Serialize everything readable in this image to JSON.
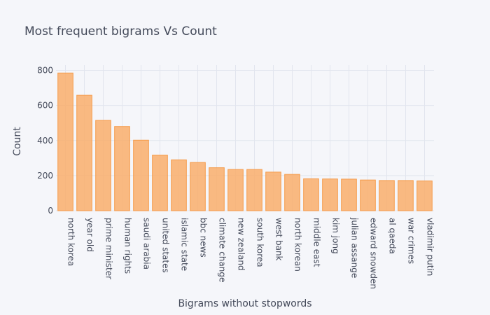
{
  "chart_data": {
    "type": "bar",
    "title": "Most frequent bigrams Vs Count",
    "xlabel": "Bigrams without stopwords",
    "ylabel": "Count",
    "ylim": [
      0,
      830
    ],
    "yticks": [
      0,
      200,
      400,
      600,
      800
    ],
    "grid": true,
    "colors": {
      "bar_fill": "#f9ae6b",
      "bar_stroke": "#f59b4a",
      "background": "#f5f6fa",
      "grid": "#e2e5ee"
    },
    "categories": [
      "north korea",
      "year old",
      "prime minister",
      "human rights",
      "saudi arabia",
      "united states",
      "islamic state",
      "bbc news",
      "climate change",
      "new zealand",
      "south korea",
      "west bank",
      "north korean",
      "middle east",
      "kim jong",
      "julian assange",
      "edward snowden",
      "al qaeda",
      "war crimes",
      "vladimir putin"
    ],
    "values": [
      785,
      658,
      515,
      480,
      402,
      317,
      290,
      275,
      245,
      235,
      235,
      220,
      207,
      182,
      181,
      180,
      175,
      172,
      172,
      170
    ]
  }
}
